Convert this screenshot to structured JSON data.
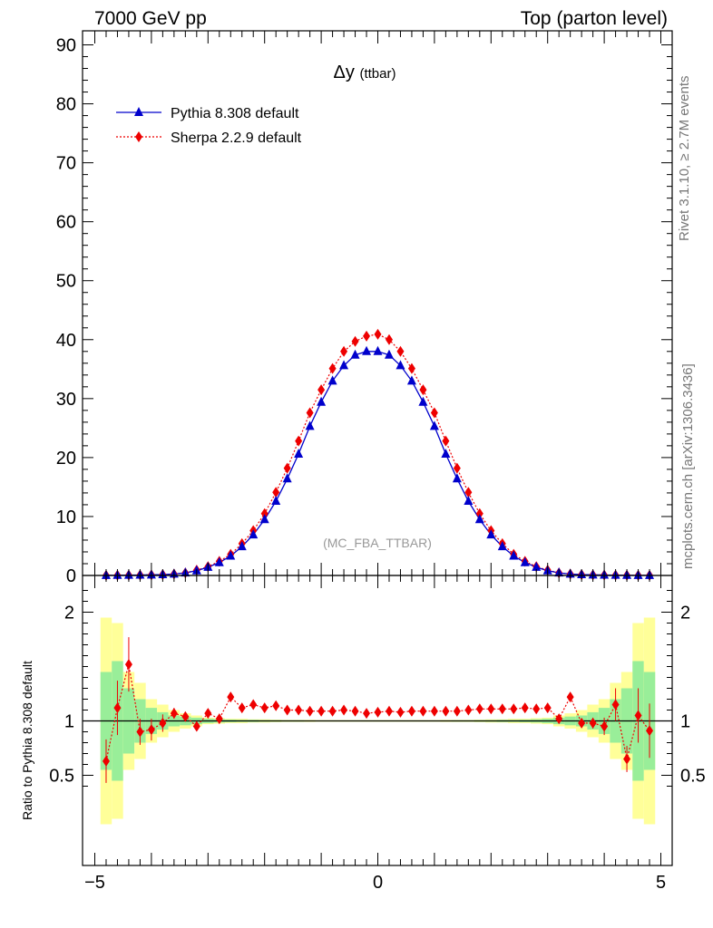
{
  "header": {
    "left": "7000 GeV pp",
    "right": "Top (parton level)"
  },
  "side_labels": {
    "rivet": "Rivet 3.1.10, ≥ 2.7M events",
    "mcplots": "mcplots.cern.ch [arXiv:1306.3436]"
  },
  "colors": {
    "pythia": "#0000cc",
    "sherpa": "#ee0000",
    "band_yellow": "#ffff99",
    "band_green": "#99ee99",
    "watermark": "#999999"
  },
  "chart_data": [
    {
      "type": "line",
      "title": "Δy",
      "title_sub": "(ttbar)",
      "watermark": "(MC_FBA_TTBAR)",
      "xlim": [
        -5,
        5
      ],
      "ylim": [
        0,
        92
      ],
      "yticks": [
        "0",
        "10",
        "20",
        "30",
        "40",
        "50",
        "60",
        "70",
        "80",
        "90"
      ],
      "legend_placement": "top-left",
      "x": [
        -4.8,
        -4.6,
        -4.4,
        -4.2,
        -4.0,
        -3.8,
        -3.6,
        -3.4,
        -3.2,
        -3.0,
        -2.8,
        -2.6,
        -2.4,
        -2.2,
        -2.0,
        -1.8,
        -1.6,
        -1.4,
        -1.2,
        -1.0,
        -0.8,
        -0.6,
        -0.4,
        -0.2,
        0.0,
        0.2,
        0.4,
        0.6,
        0.8,
        1.0,
        1.2,
        1.4,
        1.6,
        1.8,
        2.0,
        2.2,
        2.4,
        2.6,
        2.8,
        3.0,
        3.2,
        3.4,
        3.6,
        3.8,
        4.0,
        4.2,
        4.4,
        4.6,
        4.8
      ],
      "series": [
        {
          "name": "Pythia 8.308 default",
          "values": [
            0.02,
            0.03,
            0.05,
            0.07,
            0.1,
            0.15,
            0.25,
            0.45,
            0.8,
            1.4,
            2.2,
            3.3,
            4.9,
            6.9,
            9.5,
            12.6,
            16.4,
            20.6,
            25.3,
            29.4,
            33.0,
            35.6,
            37.4,
            38.0,
            38.0,
            37.4,
            35.6,
            33.0,
            29.4,
            25.3,
            20.6,
            16.4,
            12.6,
            9.5,
            6.9,
            4.9,
            3.3,
            2.2,
            1.4,
            0.8,
            0.45,
            0.25,
            0.15,
            0.1,
            0.07,
            0.05,
            0.03,
            0.02,
            0.02
          ]
        },
        {
          "name": "Sherpa 2.2.9 default",
          "values": [
            0.02,
            0.03,
            0.05,
            0.07,
            0.1,
            0.15,
            0.25,
            0.45,
            0.9,
            1.5,
            2.4,
            3.6,
            5.4,
            7.6,
            10.5,
            14.1,
            18.2,
            22.8,
            27.6,
            31.5,
            35.1,
            38.0,
            39.7,
            40.6,
            40.9,
            40.0,
            38.0,
            35.1,
            31.5,
            27.6,
            22.8,
            18.2,
            14.1,
            10.5,
            7.6,
            5.4,
            3.6,
            2.4,
            1.5,
            0.9,
            0.45,
            0.25,
            0.15,
            0.1,
            0.07,
            0.05,
            0.03,
            0.02,
            0.02
          ]
        }
      ]
    },
    {
      "type": "line",
      "ylabel": "Ratio to Pythia 8.308 default",
      "xlim": [
        -5,
        5
      ],
      "ylim": [
        0.35,
        2.3
      ],
      "yticks": [
        "0.5",
        "1",
        "2"
      ],
      "xticks": [
        "−5",
        "0",
        "5"
      ],
      "x": [
        -4.8,
        -4.6,
        -4.4,
        -4.2,
        -4.0,
        -3.8,
        -3.6,
        -3.4,
        -3.2,
        -3.0,
        -2.8,
        -2.6,
        -2.4,
        -2.2,
        -2.0,
        -1.8,
        -1.6,
        -1.4,
        -1.2,
        -1.0,
        -0.8,
        -0.6,
        -0.4,
        -0.2,
        0.0,
        0.2,
        0.4,
        0.6,
        0.8,
        1.0,
        1.2,
        1.4,
        1.6,
        1.8,
        2.0,
        2.2,
        2.4,
        2.6,
        2.8,
        3.0,
        3.2,
        3.4,
        3.6,
        3.8,
        4.0,
        4.2,
        4.4,
        4.6,
        4.8
      ],
      "band_yellow_halfwidth": [
        0.95,
        0.9,
        0.45,
        0.35,
        0.2,
        0.15,
        0.1,
        0.07,
        0.05,
        0.03,
        0.025,
        0.02,
        0.02,
        0.015,
        0.015,
        0.012,
        0.01,
        0.01,
        0.01,
        0.008,
        0.008,
        0.008,
        0.008,
        0.008,
        0.008,
        0.008,
        0.008,
        0.008,
        0.008,
        0.008,
        0.01,
        0.01,
        0.01,
        0.012,
        0.015,
        0.015,
        0.02,
        0.02,
        0.025,
        0.03,
        0.05,
        0.07,
        0.1,
        0.15,
        0.2,
        0.35,
        0.45,
        0.9,
        0.95
      ],
      "band_green_halfwidth": [
        0.45,
        0.55,
        0.3,
        0.2,
        0.12,
        0.08,
        0.05,
        0.04,
        0.03,
        0.02,
        0.015,
        0.012,
        0.01,
        0.01,
        0.008,
        0.007,
        0.006,
        0.006,
        0.005,
        0.005,
        0.005,
        0.005,
        0.005,
        0.005,
        0.005,
        0.005,
        0.005,
        0.005,
        0.005,
        0.005,
        0.005,
        0.006,
        0.006,
        0.007,
        0.008,
        0.01,
        0.01,
        0.012,
        0.015,
        0.02,
        0.03,
        0.04,
        0.05,
        0.08,
        0.12,
        0.2,
        0.3,
        0.55,
        0.45
      ],
      "series": [
        {
          "name": "Sherpa 2.2.9 default",
          "values": [
            0.63,
            1.12,
            1.52,
            0.9,
            0.92,
            0.98,
            1.07,
            1.04,
            0.95,
            1.07,
            1.02,
            1.22,
            1.12,
            1.15,
            1.12,
            1.14,
            1.1,
            1.1,
            1.09,
            1.09,
            1.09,
            1.1,
            1.09,
            1.07,
            1.08,
            1.09,
            1.08,
            1.09,
            1.09,
            1.09,
            1.09,
            1.09,
            1.1,
            1.11,
            1.11,
            1.11,
            1.11,
            1.12,
            1.11,
            1.12,
            1.02,
            1.22,
            0.98,
            0.98,
            0.95,
            1.15,
            0.65,
            1.05,
            0.91
          ],
          "err": [
            0.2,
            0.25,
            0.25,
            0.12,
            0.1,
            0.08,
            0.05,
            0.04,
            0.03,
            0.02,
            0.02,
            0.02,
            0.015,
            0.01,
            0.01,
            0.01,
            0.01,
            0.01,
            0.01,
            0.01,
            0.01,
            0.01,
            0.01,
            0.01,
            0.01,
            0.01,
            0.01,
            0.01,
            0.01,
            0.01,
            0.01,
            0.01,
            0.01,
            0.01,
            0.01,
            0.01,
            0.015,
            0.02,
            0.02,
            0.02,
            0.02,
            0.03,
            0.04,
            0.05,
            0.08,
            0.15,
            0.12,
            0.25,
            0.25
          ]
        }
      ]
    }
  ]
}
